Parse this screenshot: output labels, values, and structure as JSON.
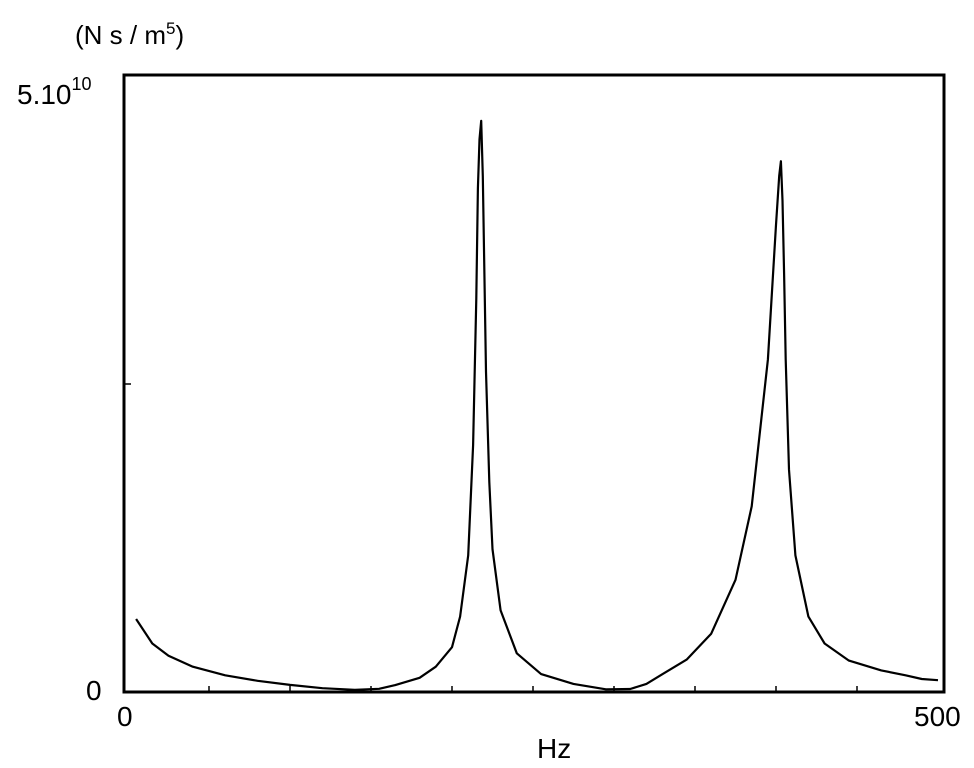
{
  "chart_data": {
    "type": "line",
    "title": "",
    "xlabel": "Hz",
    "ylabel": "(N s / m5)",
    "ylabel_unit": "(N s / m",
    "ylabel_exp": "5",
    "ylabel_close": ")",
    "xlim": [
      0,
      500
    ],
    "ylim": [
      0,
      50000000000
    ],
    "grid": false,
    "x_tick_labels": [
      "0",
      "500"
    ],
    "y_tick_labels": {
      "zero": "0",
      "top_mantissa": "5.10",
      "top_exponent": "10"
    },
    "series": [
      {
        "x": [
          5,
          15,
          25,
          40,
          60,
          80,
          100,
          120,
          140,
          155,
          165,
          180,
          190,
          200,
          205,
          210,
          213,
          215,
          216,
          217,
          218,
          219,
          220,
          221,
          223,
          225,
          230,
          240,
          255,
          275,
          295,
          310,
          320,
          330,
          345,
          360,
          375,
          385,
          395,
          400,
          402,
          403,
          404,
          405,
          406,
          408,
          412,
          420,
          430,
          445,
          465,
          480,
          490,
          500
        ],
        "y": [
          5800000000,
          3800000000,
          2800000000,
          1900000000,
          1200000000,
          750000000,
          420000000,
          150000000,
          20000000,
          100000000,
          400000000,
          1000000000,
          1900000000,
          3500000000,
          6000000000,
          11000000000,
          20000000000,
          32000000000,
          41000000000,
          45000000000,
          46500000000,
          42000000000,
          34000000000,
          26000000000,
          17000000000,
          11500000000,
          6500000000,
          3000000000,
          1300000000,
          500000000,
          60000000,
          80000000,
          500000000,
          1300000000,
          2500000000,
          4600000000,
          9000000000,
          15000000000,
          27000000000,
          38000000000,
          42000000000,
          43200000000,
          40000000000,
          34000000000,
          27000000000,
          18000000000,
          11000000000,
          6000000000,
          3800000000,
          2400000000,
          1600000000,
          1200000000,
          900000000,
          800000000
        ]
      }
    ]
  }
}
